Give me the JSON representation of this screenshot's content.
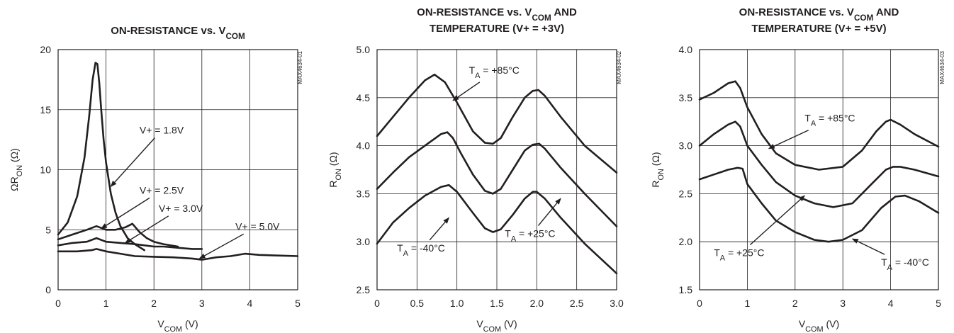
{
  "chart_data": [
    {
      "type": "line",
      "title": "ON-RESISTANCE vs. VCOM",
      "title_lines": [
        [
          {
            "t": "ON-RESISTANCE vs. V"
          },
          {
            "t": "COM",
            "sub": true
          }
        ]
      ],
      "xlabel": [
        {
          "t": "V"
        },
        {
          "t": "COM",
          "sub": true
        },
        {
          "t": " (V)"
        }
      ],
      "ylabel": [
        {
          "t": "ΩR"
        },
        {
          "t": "ON",
          "sub": true
        },
        {
          "t": " (Ω)"
        }
      ],
      "side_label": "MAX4634-01",
      "xlim": [
        0,
        5
      ],
      "ylim": [
        0,
        20
      ],
      "xticks": [
        0,
        1,
        2,
        3,
        4,
        5
      ],
      "xtick_labels": [
        "0",
        "1",
        "2",
        "3",
        "4",
        "5"
      ],
      "yticks": [
        0,
        5,
        10,
        15,
        20
      ],
      "ytick_labels": [
        "0",
        "5",
        "10",
        "15",
        "20"
      ],
      "grid": true,
      "series": [
        {
          "name": "V+ = 1.8V",
          "x": [
            0,
            0.2,
            0.4,
            0.55,
            0.65,
            0.72,
            0.78,
            0.82,
            0.86,
            0.9,
            0.95,
            1.0,
            1.1,
            1.2,
            1.3,
            1.45,
            1.6,
            1.8
          ],
          "y": [
            4.6,
            5.6,
            7.8,
            11.0,
            14.5,
            17.5,
            18.9,
            18.8,
            17.2,
            15.0,
            12.5,
            10.6,
            8.0,
            6.4,
            5.3,
            4.3,
            3.8,
            3.3
          ]
        },
        {
          "name": "V+ = 2.5V",
          "x": [
            0,
            0.3,
            0.6,
            0.8,
            1.0,
            1.2,
            1.4,
            1.55,
            1.7,
            1.85,
            2.0,
            2.2,
            2.5
          ],
          "y": [
            4.2,
            4.6,
            5.0,
            5.3,
            5.0,
            5.0,
            5.2,
            5.5,
            4.8,
            4.3,
            4.0,
            3.8,
            3.6
          ]
        },
        {
          "name": "V+ = 3.0V",
          "x": [
            0,
            0.3,
            0.6,
            0.8,
            1.0,
            1.3,
            1.6,
            2.0,
            2.2,
            2.5,
            2.8,
            3.0
          ],
          "y": [
            3.7,
            3.9,
            4.0,
            4.3,
            4.0,
            3.9,
            3.8,
            3.6,
            3.6,
            3.5,
            3.4,
            3.4
          ]
        },
        {
          "name": "V+ = 5.0V",
          "x": [
            0,
            0.4,
            0.7,
            0.8,
            1.0,
            1.3,
            1.6,
            2.0,
            2.4,
            2.8,
            3.0,
            3.3,
            3.6,
            3.9,
            4.2,
            4.6,
            5.0
          ],
          "y": [
            3.2,
            3.2,
            3.3,
            3.4,
            3.2,
            3.0,
            2.8,
            2.75,
            2.7,
            2.6,
            2.5,
            2.7,
            2.8,
            3.0,
            2.9,
            2.85,
            2.8
          ]
        }
      ],
      "annotations": [
        {
          "label": [
            {
              "t": "V+ = 1.8V"
            }
          ],
          "tx": 1.7,
          "ty": 13.0,
          "ax": 1.1,
          "ay": 8.6
        },
        {
          "label": [
            {
              "t": "V+ = 2.5V"
            }
          ],
          "tx": 1.7,
          "ty": 8.0,
          "ax": 0.9,
          "ay": 5.1
        },
        {
          "label": [
            {
              "t": "V+ = 3.0V"
            }
          ],
          "tx": 2.1,
          "ty": 6.5,
          "ax": 1.4,
          "ay": 3.9
        },
        {
          "label": [
            {
              "t": "V+ = 5.0V"
            }
          ],
          "tx": 3.7,
          "ty": 5.0,
          "ax": 2.95,
          "ay": 2.6
        }
      ]
    },
    {
      "type": "line",
      "title": "ON-RESISTANCE vs. VCOM AND TEMPERATURE (V+ = +3V)",
      "title_lines": [
        [
          {
            "t": "ON-RESISTANCE vs. V"
          },
          {
            "t": "COM",
            "sub": true
          },
          {
            "t": " AND"
          }
        ],
        [
          {
            "t": "TEMPERATURE (V+ = +3V)"
          }
        ]
      ],
      "xlabel": [
        {
          "t": "V"
        },
        {
          "t": "COM",
          "sub": true
        },
        {
          "t": " (V)"
        }
      ],
      "ylabel": [
        {
          "t": "R"
        },
        {
          "t": "ON",
          "sub": true
        },
        {
          "t": " (Ω)"
        }
      ],
      "side_label": "MAX4634-02",
      "xlim": [
        0,
        3.0
      ],
      "ylim": [
        2.5,
        5.0
      ],
      "xticks": [
        0,
        0.5,
        1.0,
        1.5,
        2.0,
        2.5,
        3.0
      ],
      "xtick_labels": [
        "0",
        "0.5",
        "1.0",
        "1.5",
        "2.0",
        "2.5",
        "3.0"
      ],
      "yticks": [
        2.5,
        3.0,
        3.5,
        4.0,
        4.5,
        5.0
      ],
      "ytick_labels": [
        "2.5",
        "3.0",
        "3.5",
        "4.0",
        "4.5",
        "5.0"
      ],
      "grid": true,
      "series": [
        {
          "name": "TA = +85°C",
          "x": [
            0,
            0.2,
            0.4,
            0.6,
            0.72,
            0.85,
            1.0,
            1.2,
            1.35,
            1.45,
            1.55,
            1.7,
            1.85,
            1.95,
            2.02,
            2.1,
            2.3,
            2.6,
            3.0
          ],
          "y": [
            4.1,
            4.3,
            4.5,
            4.68,
            4.74,
            4.66,
            4.45,
            4.15,
            4.03,
            4.02,
            4.08,
            4.3,
            4.5,
            4.57,
            4.58,
            4.52,
            4.3,
            4.0,
            3.72
          ]
        },
        {
          "name": "TA = +25°C",
          "x": [
            0,
            0.2,
            0.4,
            0.6,
            0.8,
            0.88,
            0.95,
            1.05,
            1.2,
            1.35,
            1.45,
            1.55,
            1.7,
            1.85,
            1.95,
            2.03,
            2.1,
            2.3,
            2.6,
            3.0
          ],
          "y": [
            3.55,
            3.72,
            3.88,
            4.0,
            4.12,
            4.14,
            4.08,
            3.92,
            3.7,
            3.53,
            3.5,
            3.55,
            3.75,
            3.95,
            4.01,
            4.02,
            3.97,
            3.77,
            3.5,
            3.16
          ]
        },
        {
          "name": "TA = -40°C",
          "x": [
            0,
            0.2,
            0.4,
            0.6,
            0.8,
            0.9,
            1.0,
            1.2,
            1.35,
            1.45,
            1.55,
            1.7,
            1.85,
            1.95,
            2.0,
            2.1,
            2.3,
            2.6,
            3.0
          ],
          "y": [
            2.98,
            3.2,
            3.35,
            3.48,
            3.57,
            3.59,
            3.52,
            3.3,
            3.14,
            3.1,
            3.13,
            3.28,
            3.45,
            3.52,
            3.52,
            3.45,
            3.25,
            2.98,
            2.67
          ]
        }
      ],
      "annotations": [
        {
          "label": [
            {
              "t": "T"
            },
            {
              "t": "A",
              "sub": true
            },
            {
              "t": " = +85°C"
            }
          ],
          "tx": 1.15,
          "ty": 4.75,
          "ax": 0.95,
          "ay": 4.47
        },
        {
          "label": [
            {
              "t": "T"
            },
            {
              "t": "A",
              "sub": true
            },
            {
              "t": " = -40°C"
            }
          ],
          "tx": 0.25,
          "ty": 2.9,
          "ax": 0.9,
          "ay": 3.25
        },
        {
          "label": [
            {
              "t": "T"
            },
            {
              "t": "A",
              "sub": true
            },
            {
              "t": " = +25°C"
            }
          ],
          "tx": 1.6,
          "ty": 3.05,
          "ax": 2.3,
          "ay": 3.45
        }
      ]
    },
    {
      "type": "line",
      "title": "ON-RESISTANCE vs. VCOM AND TEMPERATURE (V+ = +5V)",
      "title_lines": [
        [
          {
            "t": "ON-RESISTANCE vs. V"
          },
          {
            "t": "COM",
            "sub": true
          },
          {
            "t": " AND"
          }
        ],
        [
          {
            "t": "TEMPERATURE (V+ = +5V)"
          }
        ]
      ],
      "xlabel": [
        {
          "t": "V"
        },
        {
          "t": "COM",
          "sub": true
        },
        {
          "t": " (V)"
        }
      ],
      "ylabel": [
        {
          "t": "R"
        },
        {
          "t": "ON",
          "sub": true
        },
        {
          "t": " (Ω)"
        }
      ],
      "side_label": "MAX4634-03",
      "xlim": [
        0,
        5
      ],
      "ylim": [
        1.5,
        4.0
      ],
      "xticks": [
        0,
        1,
        2,
        3,
        4,
        5
      ],
      "xtick_labels": [
        "0",
        "1",
        "2",
        "3",
        "4",
        "5"
      ],
      "yticks": [
        1.5,
        2.0,
        2.5,
        3.0,
        3.5,
        4.0
      ],
      "ytick_labels": [
        "1.5",
        "2.0",
        "2.5",
        "3.0",
        "3.5",
        "4.0"
      ],
      "grid": true,
      "series": [
        {
          "name": "TA = +85°C",
          "x": [
            0,
            0.3,
            0.6,
            0.75,
            0.85,
            1.0,
            1.3,
            1.6,
            2.0,
            2.5,
            3.0,
            3.4,
            3.7,
            3.9,
            4.0,
            4.2,
            4.5,
            5.0
          ],
          "y": [
            3.48,
            3.55,
            3.65,
            3.67,
            3.6,
            3.4,
            3.12,
            2.92,
            2.8,
            2.75,
            2.78,
            2.95,
            3.15,
            3.25,
            3.27,
            3.22,
            3.12,
            2.99
          ]
        },
        {
          "name": "TA = +25°C",
          "x": [
            0,
            0.3,
            0.6,
            0.75,
            0.85,
            1.0,
            1.3,
            1.6,
            2.0,
            2.4,
            2.8,
            3.2,
            3.6,
            3.9,
            4.05,
            4.2,
            4.5,
            5.0
          ],
          "y": [
            3.0,
            3.12,
            3.22,
            3.25,
            3.2,
            3.0,
            2.8,
            2.62,
            2.48,
            2.4,
            2.36,
            2.4,
            2.6,
            2.75,
            2.78,
            2.78,
            2.75,
            2.68
          ]
        },
        {
          "name": "TA = -40°C",
          "x": [
            0,
            0.3,
            0.6,
            0.8,
            0.9,
            1.0,
            1.3,
            1.6,
            2.0,
            2.4,
            2.7,
            3.0,
            3.4,
            3.8,
            4.1,
            4.3,
            4.6,
            5.0
          ],
          "y": [
            2.65,
            2.7,
            2.75,
            2.77,
            2.76,
            2.6,
            2.4,
            2.22,
            2.1,
            2.02,
            2.0,
            2.02,
            2.12,
            2.35,
            2.47,
            2.48,
            2.42,
            2.3
          ]
        }
      ],
      "annotations": [
        {
          "label": [
            {
              "t": "T"
            },
            {
              "t": "A",
              "sub": true
            },
            {
              "t": " = +85°C"
            }
          ],
          "tx": 2.2,
          "ty": 3.25,
          "ax": 1.45,
          "ay": 2.97
        },
        {
          "label": [
            {
              "t": "T"
            },
            {
              "t": "A",
              "sub": true
            },
            {
              "t": " = +25°C"
            }
          ],
          "tx": 0.3,
          "ty": 1.85,
          "ax": 2.2,
          "ay": 2.48
        },
        {
          "label": [
            {
              "t": "T"
            },
            {
              "t": "A",
              "sub": true
            },
            {
              "t": " = -40°C"
            }
          ],
          "tx": 3.8,
          "ty": 1.75,
          "ax": 3.2,
          "ay": 2.03
        }
      ]
    }
  ]
}
